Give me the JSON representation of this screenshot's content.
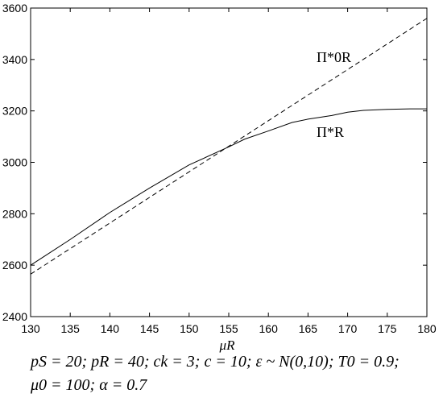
{
  "chart_data": {
    "type": "line",
    "xlabel": "μR",
    "ylabel": "",
    "xlim": [
      130,
      180
    ],
    "ylim": [
      2400,
      3600
    ],
    "x_ticks": [
      130,
      135,
      140,
      145,
      150,
      155,
      160,
      165,
      170,
      175,
      180
    ],
    "y_ticks": [
      2400,
      2600,
      2800,
      3000,
      3200,
      3400,
      3600
    ],
    "grid": false,
    "series": [
      {
        "name": "Π*0R",
        "style": "dashed",
        "x": [
          130,
          140,
          150,
          160,
          170,
          180
        ],
        "y": [
          2565,
          2764,
          2963,
          3162,
          3361,
          3560
        ]
      },
      {
        "name": "Π*R",
        "style": "solid",
        "x": [
          130,
          132,
          135,
          140,
          145,
          150,
          155,
          157,
          160,
          163,
          165,
          168,
          170,
          172,
          175,
          178,
          180
        ],
        "y": [
          2600,
          2640,
          2700,
          2805,
          2900,
          2990,
          3060,
          3090,
          3122,
          3155,
          3168,
          3182,
          3195,
          3202,
          3206,
          3208,
          3208
        ]
      }
    ]
  },
  "caption": {
    "line1": "pS = 20; pR = 40; ck = 3; c = 10; ε ~ N(0,10); T0 = 0.9;",
    "line2": "μ0 = 100; α = 0.7"
  }
}
